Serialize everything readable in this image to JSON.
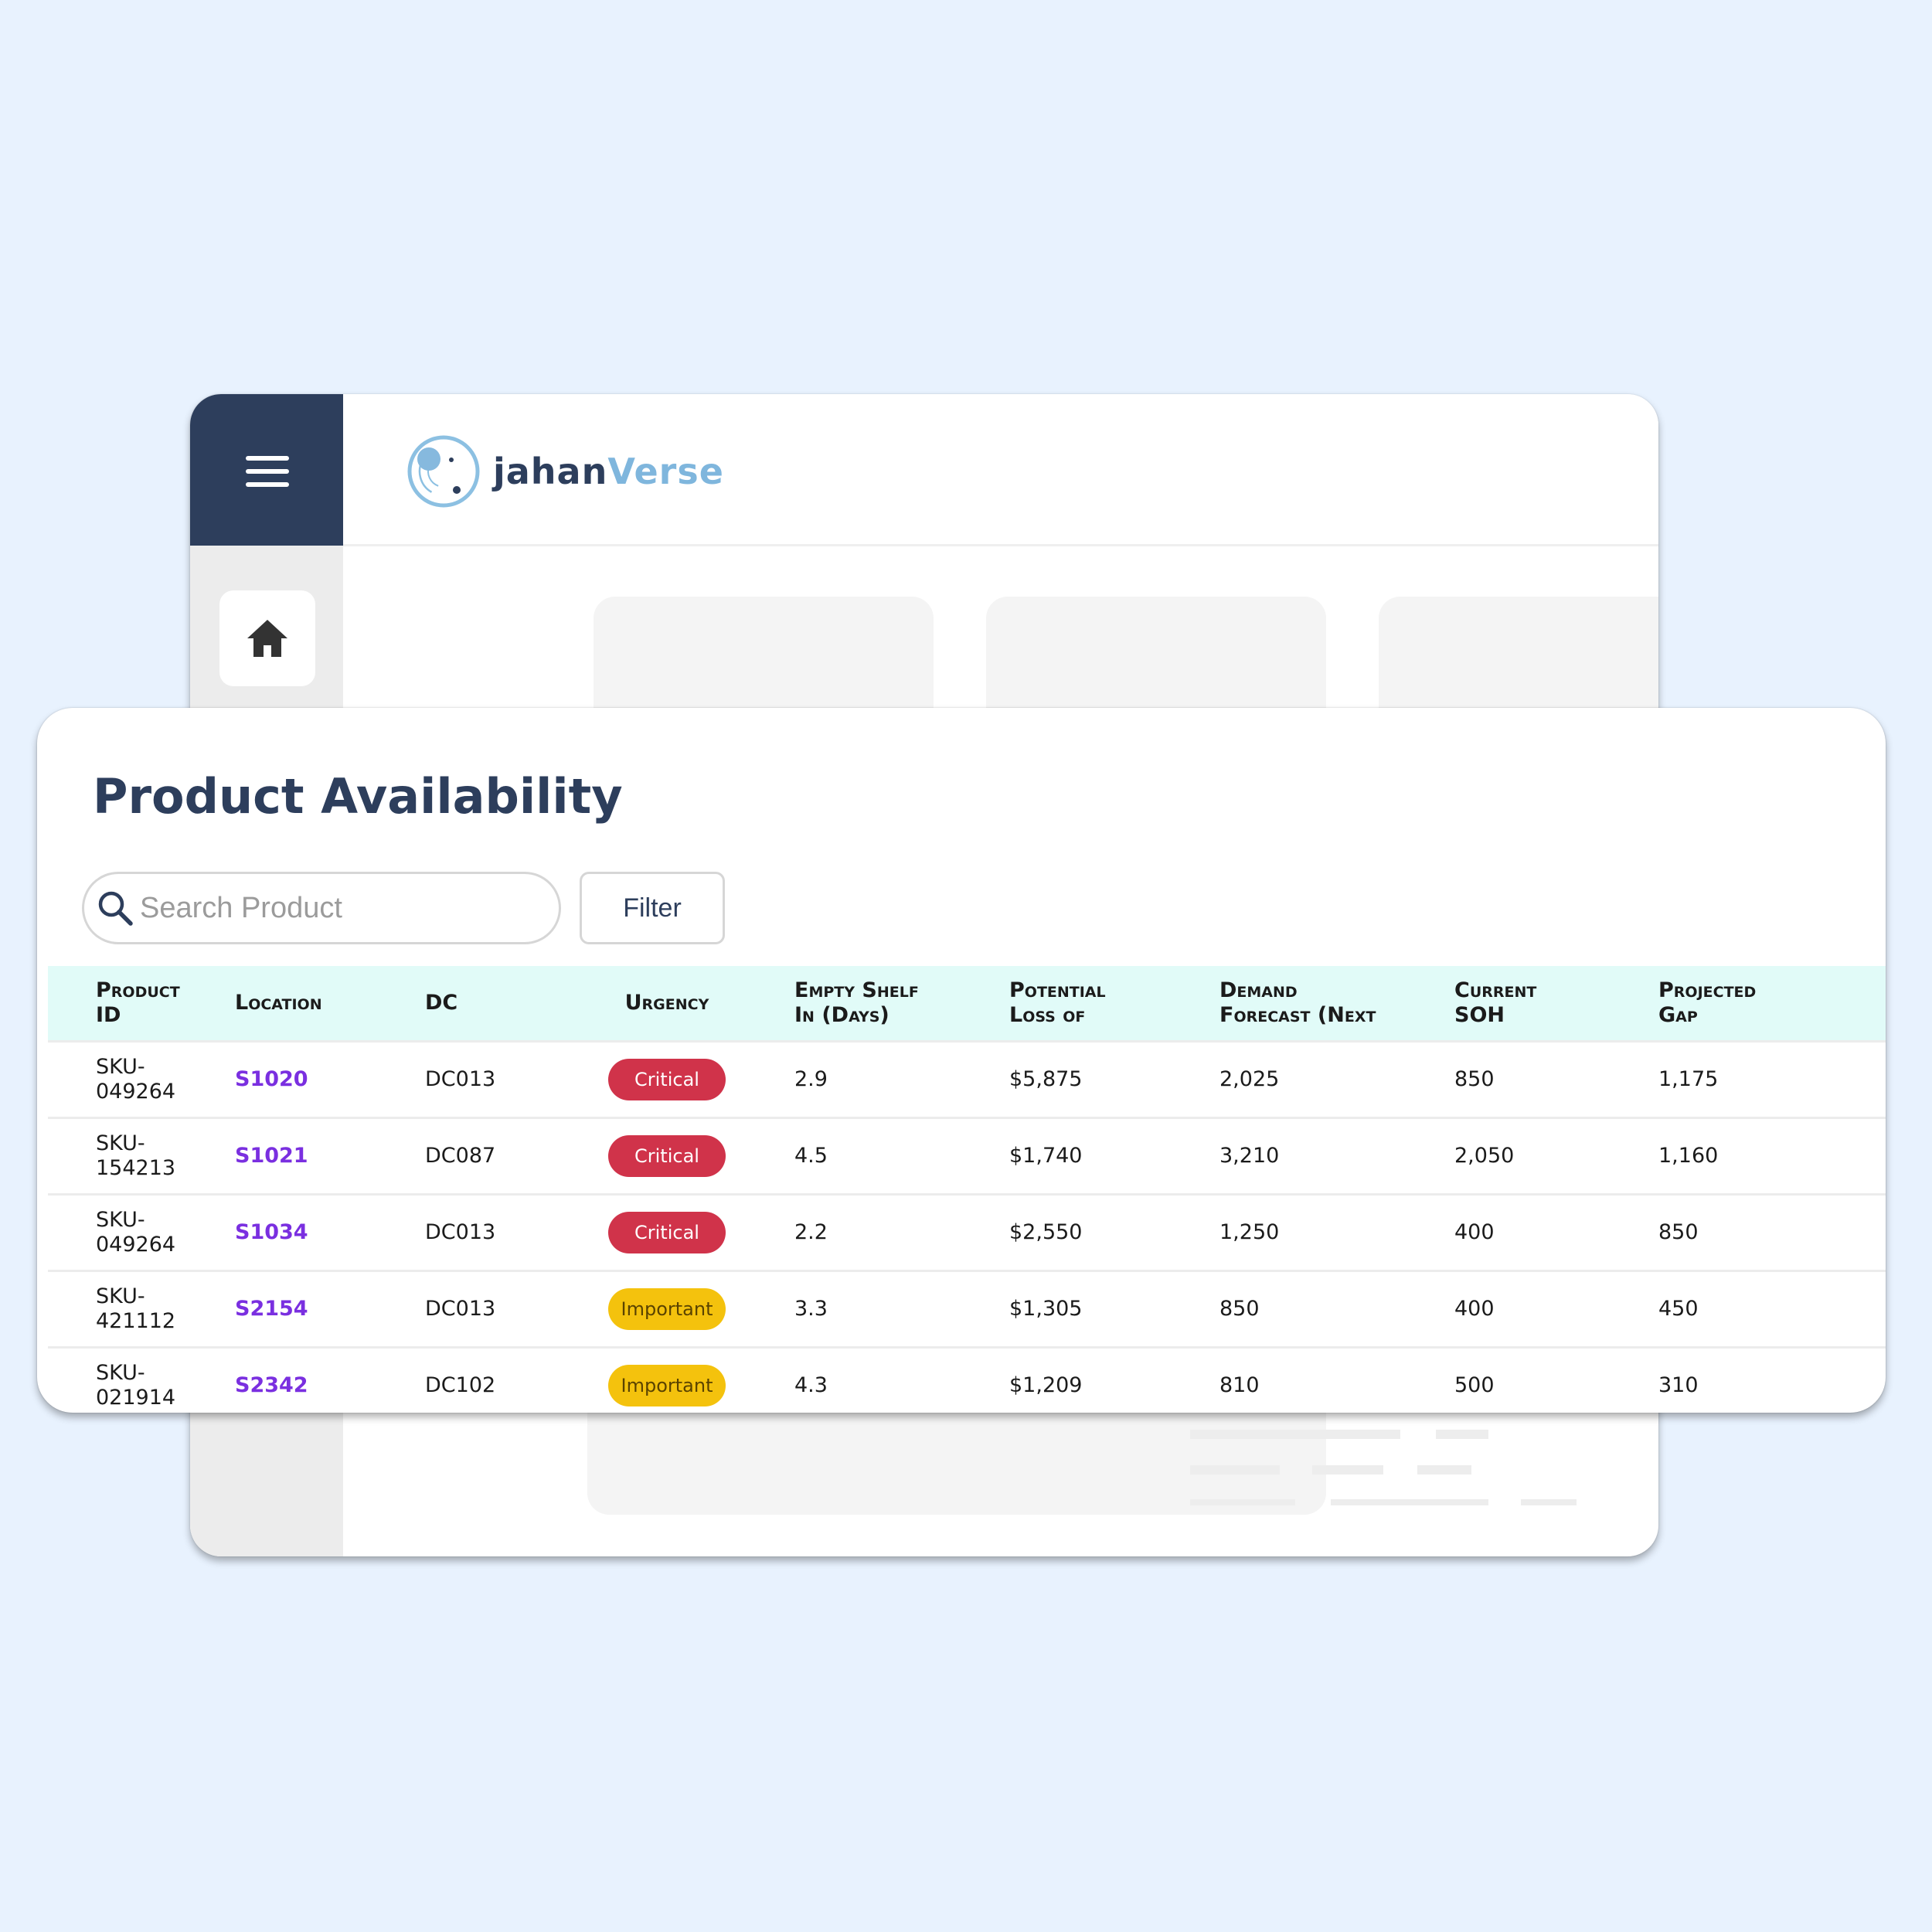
{
  "app": {
    "brand_part1": "jahan",
    "brand_part2": "Verse",
    "accent_color": "#2d3e5c",
    "brand_light_color": "#7fb6dd"
  },
  "icons": {
    "menu": "hamburger-menu-icon",
    "home": "home-icon",
    "logo": "orbit-logo-icon",
    "search": "search-icon"
  },
  "card": {
    "title": "Product Availability",
    "search_placeholder": "Search Product",
    "filter_label": "Filter"
  },
  "table": {
    "columns": [
      {
        "line1": "Product",
        "line2": "ID"
      },
      {
        "line1": "Location",
        "line2": ""
      },
      {
        "line1": "DC",
        "line2": ""
      },
      {
        "line1": "Urgency",
        "line2": ""
      },
      {
        "line1": "Empty Shelf",
        "line2": "In (Days)"
      },
      {
        "line1": "Potential",
        "line2": "Loss of"
      },
      {
        "line1": "Demand",
        "line2": "Forecast (Next"
      },
      {
        "line1": "Current",
        "line2": "SOH"
      },
      {
        "line1": "Projected",
        "line2": "Gap"
      }
    ],
    "rows": [
      {
        "product_id_1": "SKU-",
        "product_id_2": "049264",
        "location": "S1020",
        "dc": "DC013",
        "urgency": "Critical",
        "urgency_level": "critical",
        "empty_shelf_days": "2.9",
        "potential_loss": "$5,875",
        "demand_forecast": "2,025",
        "current_soh": "850",
        "projected_gap": "1,175"
      },
      {
        "product_id_1": "SKU-",
        "product_id_2": "154213",
        "location": "S1021",
        "dc": "DC087",
        "urgency": "Critical",
        "urgency_level": "critical",
        "empty_shelf_days": "4.5",
        "potential_loss": "$1,740",
        "demand_forecast": "3,210",
        "current_soh": "2,050",
        "projected_gap": "1,160"
      },
      {
        "product_id_1": "SKU-",
        "product_id_2": "049264",
        "location": "S1034",
        "dc": "DC013",
        "urgency": "Critical",
        "urgency_level": "critical",
        "empty_shelf_days": "2.2",
        "potential_loss": "$2,550",
        "demand_forecast": "1,250",
        "current_soh": "400",
        "projected_gap": "850"
      },
      {
        "product_id_1": "SKU-",
        "product_id_2": "421112",
        "location": "S2154",
        "dc": "DC013",
        "urgency": "Important",
        "urgency_level": "important",
        "empty_shelf_days": "3.3",
        "potential_loss": "$1,305",
        "demand_forecast": "850",
        "current_soh": "400",
        "projected_gap": "450"
      },
      {
        "product_id_1": "SKU-",
        "product_id_2": "021914",
        "location": "S2342",
        "dc": "DC102",
        "urgency": "Important",
        "urgency_level": "important",
        "empty_shelf_days": "4.3",
        "potential_loss": "$1,209",
        "demand_forecast": "810",
        "current_soh": "500",
        "projected_gap": "310"
      }
    ],
    "colors": {
      "critical": "#d0334a",
      "important": "#f4c20d",
      "location_link": "#7a2fe0",
      "header_bg": "#e1fbf8"
    }
  }
}
